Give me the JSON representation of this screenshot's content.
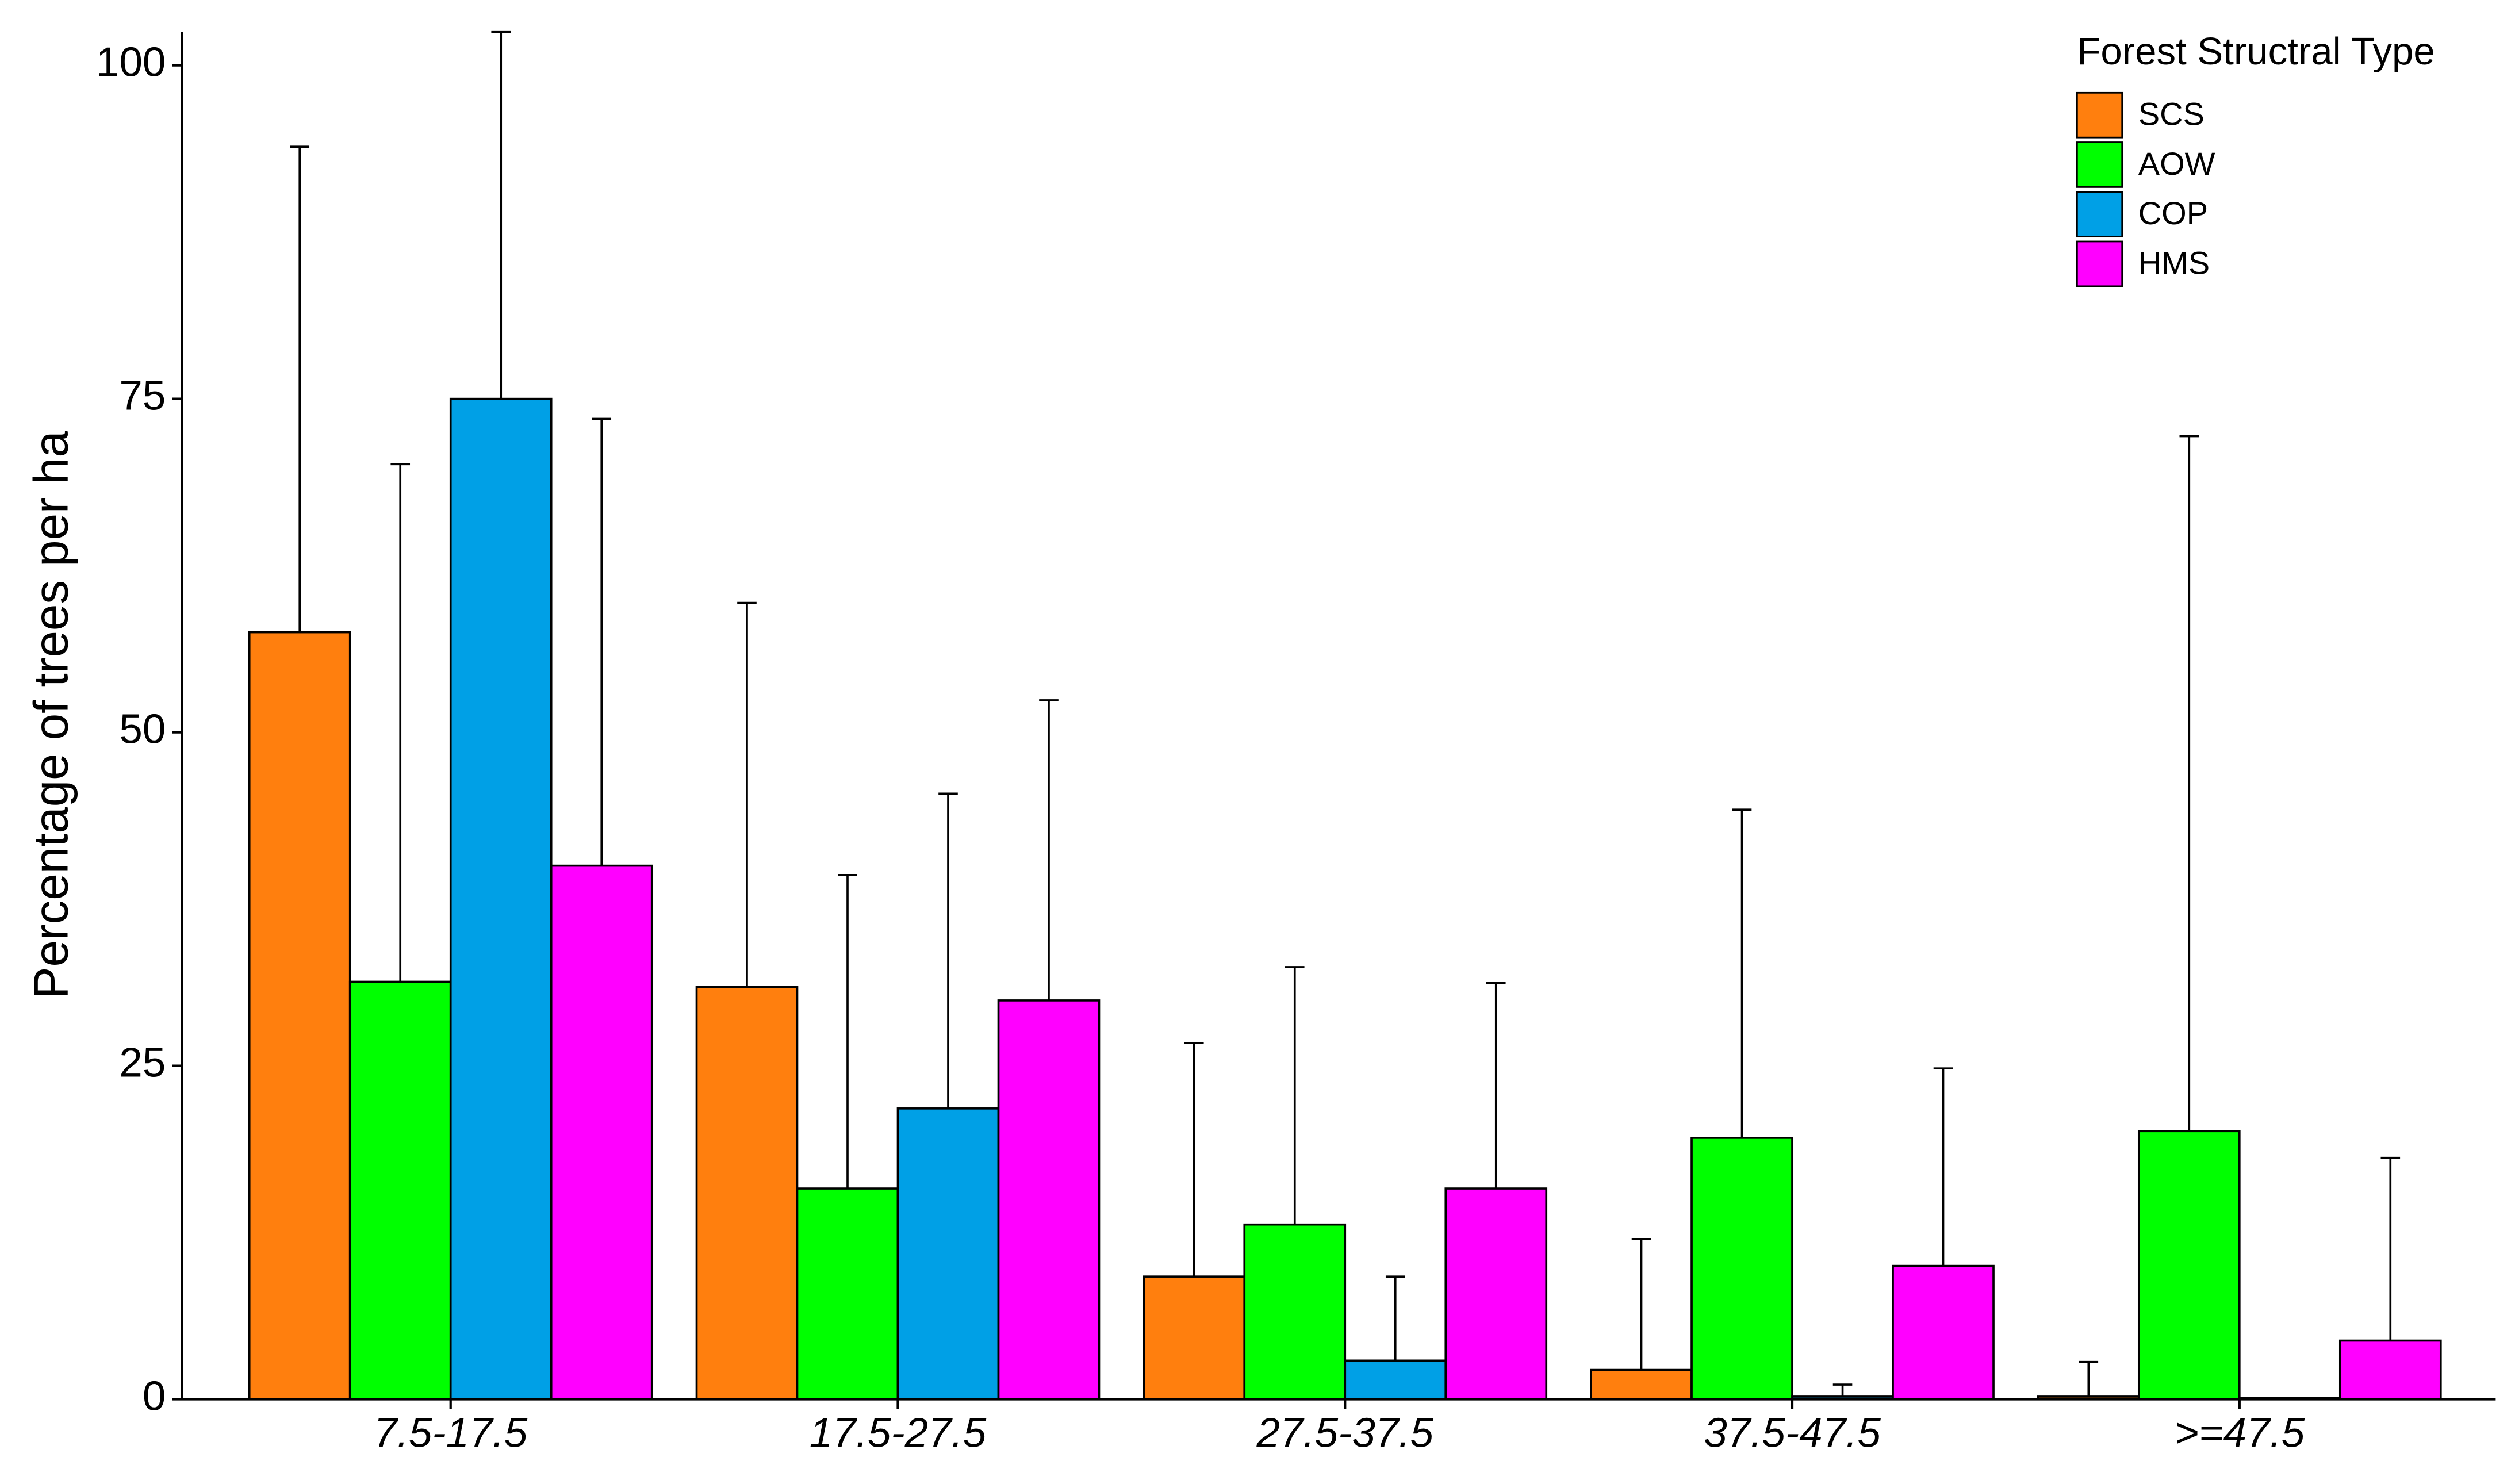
{
  "chart_data": {
    "type": "bar",
    "y_label": "Percentage of trees per ha",
    "legend_title": "Forest Structral Type",
    "legend_position": "top-right",
    "categories": [
      "7.5-17.5",
      "17.5-27.5",
      "27.5-37.5",
      "37.5-47.5",
      ">=47.5"
    ],
    "series": [
      {
        "name": "SCS",
        "color": "#ff7f0e",
        "values": [
          57.5,
          30.9,
          9.2,
          2.2,
          0.2
        ],
        "errors": [
          36.4,
          28.8,
          17.5,
          9.8,
          2.6
        ]
      },
      {
        "name": "AOW",
        "color": "#00ff00",
        "values": [
          31.3,
          15.8,
          13.1,
          19.6,
          20.1
        ],
        "errors": [
          38.8,
          23.5,
          19.3,
          24.6,
          52.1
        ]
      },
      {
        "name": "COP",
        "color": "#00a0e6",
        "values": [
          75,
          21.8,
          2.9,
          0.2,
          0.1
        ],
        "errors": [
          27.5,
          23.6,
          6.3,
          0.9,
          0
        ]
      },
      {
        "name": "HMS",
        "color": "#ff00ff",
        "values": [
          40,
          29.9,
          15.8,
          10,
          4.4
        ],
        "errors": [
          33.5,
          22.5,
          15.4,
          14.8,
          13.7
        ]
      }
    ],
    "ylim": [
      0,
      102.5
    ],
    "yticks": [
      0,
      25,
      50,
      75,
      100
    ],
    "grid": false
  }
}
